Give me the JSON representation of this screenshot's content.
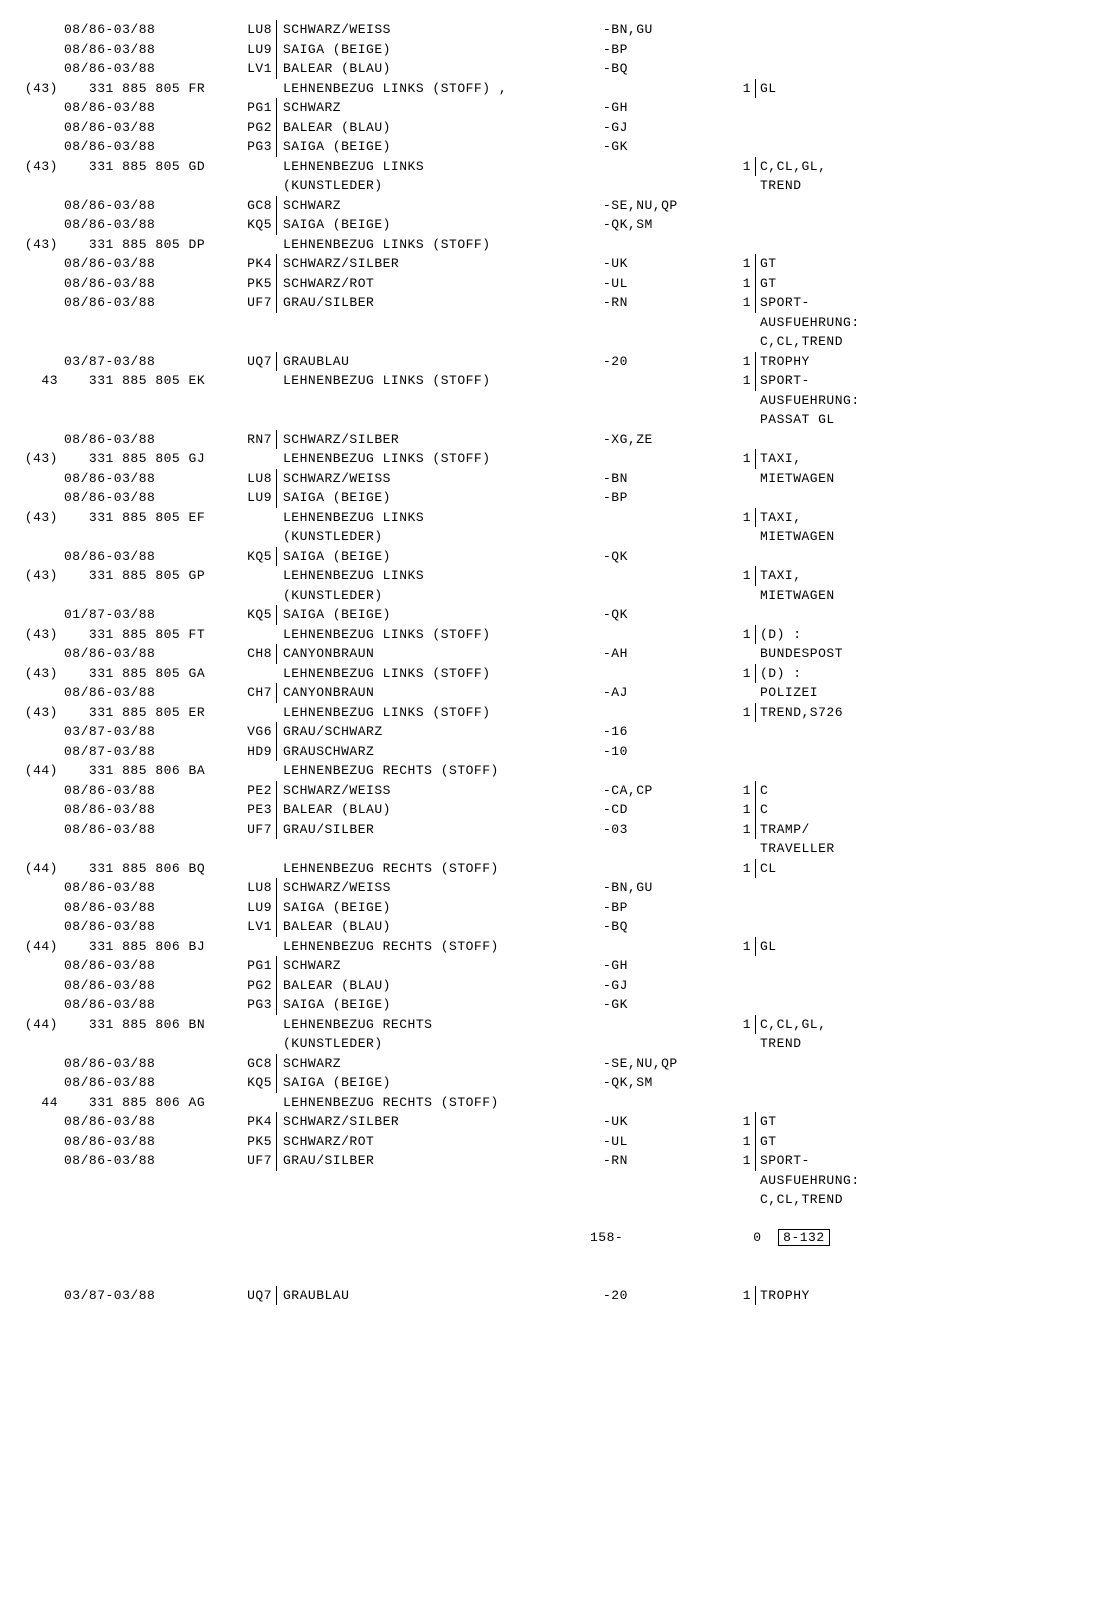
{
  "rows": [
    {
      "idx": "",
      "date": "08/86-03/88",
      "code": "LU8",
      "desc": "SCHWARZ/WEISS",
      "opt": "-BN,GU",
      "qty": "",
      "note": ""
    },
    {
      "idx": "",
      "date": "08/86-03/88",
      "code": "LU9",
      "desc": "SAIGA (BEIGE)",
      "opt": "-BP",
      "qty": "",
      "note": ""
    },
    {
      "idx": "",
      "date": "08/86-03/88",
      "code": "LV1",
      "desc": "BALEAR (BLAU)",
      "opt": "-BQ",
      "qty": "",
      "note": ""
    },
    {
      "idx": "(43)",
      "date": "   331 885 805 FR",
      "code": "",
      "desc": "LEHNENBEZUG LINKS (STOFF) ,",
      "opt": "",
      "qty": "1",
      "note": "GL"
    },
    {
      "idx": "",
      "date": "08/86-03/88",
      "code": "PG1",
      "desc": "SCHWARZ",
      "opt": "-GH",
      "qty": "",
      "note": ""
    },
    {
      "idx": "",
      "date": "08/86-03/88",
      "code": "PG2",
      "desc": "BALEAR (BLAU)",
      "opt": "-GJ",
      "qty": "",
      "note": ""
    },
    {
      "idx": "",
      "date": "08/86-03/88",
      "code": "PG3",
      "desc": "SAIGA (BEIGE)",
      "opt": "-GK",
      "qty": "",
      "note": ""
    },
    {
      "idx": "(43)",
      "date": "   331 885 805 GD",
      "code": "",
      "desc": "LEHNENBEZUG LINKS",
      "opt": "",
      "qty": "1",
      "note": "C,CL,GL,"
    },
    {
      "idx": "",
      "date": "",
      "code": "",
      "desc": "(KUNSTLEDER)",
      "opt": "",
      "qty": "",
      "note": "TREND"
    },
    {
      "idx": "",
      "date": "08/86-03/88",
      "code": "GC8",
      "desc": "SCHWARZ",
      "opt": "-SE,NU,QP",
      "qty": "",
      "note": ""
    },
    {
      "idx": "",
      "date": "08/86-03/88",
      "code": "KQ5",
      "desc": "SAIGA (BEIGE)",
      "opt": "-QK,SM",
      "qty": "",
      "note": ""
    },
    {
      "idx": "(43)",
      "date": "   331 885 805 DP",
      "code": "",
      "desc": "LEHNENBEZUG LINKS (STOFF)",
      "opt": "",
      "qty": "",
      "note": ""
    },
    {
      "idx": "",
      "date": "08/86-03/88",
      "code": "PK4",
      "desc": "SCHWARZ/SILBER",
      "opt": "-UK",
      "qty": "1",
      "note": "GT"
    },
    {
      "idx": "",
      "date": "08/86-03/88",
      "code": "PK5",
      "desc": "SCHWARZ/ROT",
      "opt": "-UL",
      "qty": "1",
      "note": "GT"
    },
    {
      "idx": "",
      "date": "08/86-03/88",
      "code": "UF7",
      "desc": "GRAU/SILBER",
      "opt": "-RN",
      "qty": "1",
      "note": "SPORT-"
    },
    {
      "idx": "",
      "date": "",
      "code": "",
      "desc": "",
      "opt": "",
      "qty": "",
      "note": "AUSFUEHRUNG:"
    },
    {
      "idx": "",
      "date": "",
      "code": "",
      "desc": "",
      "opt": "",
      "qty": "",
      "note": "C,CL,TREND"
    },
    {
      "idx": "",
      "date": "03/87-03/88",
      "code": "UQ7",
      "desc": "GRAUBLAU",
      "opt": "-20",
      "qty": "1",
      "note": "TROPHY"
    },
    {
      "idx": "43",
      "date": "   331 885 805 EK",
      "code": "",
      "desc": "LEHNENBEZUG LINKS (STOFF)",
      "opt": "",
      "qty": "1",
      "note": "SPORT-"
    },
    {
      "idx": "",
      "date": "",
      "code": "",
      "desc": "",
      "opt": "",
      "qty": "",
      "note": "AUSFUEHRUNG:"
    },
    {
      "idx": "",
      "date": "",
      "code": "",
      "desc": "",
      "opt": "",
      "qty": "",
      "note": "PASSAT GL"
    },
    {
      "idx": "",
      "date": "08/86-03/88",
      "code": "RN7",
      "desc": "SCHWARZ/SILBER",
      "opt": "-XG,ZE",
      "qty": "",
      "note": ""
    },
    {
      "idx": "(43)",
      "date": "   331 885 805 GJ",
      "code": "",
      "desc": "LEHNENBEZUG LINKS (STOFF)",
      "opt": "",
      "qty": "1",
      "note": "TAXI,"
    },
    {
      "idx": "",
      "date": "08/86-03/88",
      "code": "LU8",
      "desc": "SCHWARZ/WEISS",
      "opt": "-BN",
      "qty": "",
      "note": "MIETWAGEN"
    },
    {
      "idx": "",
      "date": "08/86-03/88",
      "code": "LU9",
      "desc": "SAIGA (BEIGE)",
      "opt": "-BP",
      "qty": "",
      "note": ""
    },
    {
      "idx": "(43)",
      "date": "   331 885 805 EF",
      "code": "",
      "desc": "LEHNENBEZUG LINKS",
      "opt": "",
      "qty": "1",
      "note": "TAXI,"
    },
    {
      "idx": "",
      "date": "",
      "code": "",
      "desc": "(KUNSTLEDER)",
      "opt": "",
      "qty": "",
      "note": "MIETWAGEN"
    },
    {
      "idx": "",
      "date": "08/86-03/88",
      "code": "KQ5",
      "desc": "SAIGA (BEIGE)",
      "opt": "-QK",
      "qty": "",
      "note": ""
    },
    {
      "idx": "(43)",
      "date": "   331 885 805 GP",
      "code": "",
      "desc": "LEHNENBEZUG LINKS",
      "opt": "",
      "qty": "1",
      "note": "TAXI,"
    },
    {
      "idx": "",
      "date": "",
      "code": "",
      "desc": "(KUNSTLEDER)",
      "opt": "",
      "qty": "",
      "note": "MIETWAGEN"
    },
    {
      "idx": "",
      "date": "01/87-03/88",
      "code": "KQ5",
      "desc": "SAIGA (BEIGE)",
      "opt": "-QK",
      "qty": "",
      "note": ""
    },
    {
      "idx": "(43)",
      "date": "   331 885 805 FT",
      "code": "",
      "desc": "LEHNENBEZUG LINKS (STOFF)",
      "opt": "",
      "qty": "1",
      "note": "(D) :"
    },
    {
      "idx": "",
      "date": "08/86-03/88",
      "code": "CH8",
      "desc": "CANYONBRAUN",
      "opt": "-AH",
      "qty": "",
      "note": "BUNDESPOST"
    },
    {
      "idx": "(43)",
      "date": "   331 885 805 GA",
      "code": "",
      "desc": "LEHNENBEZUG LINKS (STOFF)",
      "opt": "",
      "qty": "1",
      "note": "(D) :"
    },
    {
      "idx": "",
      "date": "08/86-03/88",
      "code": "CH7",
      "desc": "CANYONBRAUN",
      "opt": "-AJ",
      "qty": "",
      "note": "POLIZEI"
    },
    {
      "idx": "(43)",
      "date": "   331 885 805 ER",
      "code": "",
      "desc": "LEHNENBEZUG LINKS (STOFF)",
      "opt": "",
      "qty": "1",
      "note": "TREND,S726"
    },
    {
      "idx": "",
      "date": "03/87-03/88",
      "code": "VG6",
      "desc": "GRAU/SCHWARZ",
      "opt": "-16",
      "qty": "",
      "note": ""
    },
    {
      "idx": "",
      "date": "08/87-03/88",
      "code": "HD9",
      "desc": "GRAUSCHWARZ",
      "opt": "-10",
      "qty": "",
      "note": ""
    },
    {
      "idx": "(44)",
      "date": "   331 885 806 BA",
      "code": "",
      "desc": "LEHNENBEZUG RECHTS (STOFF)",
      "opt": "",
      "qty": "",
      "note": ""
    },
    {
      "idx": "",
      "date": "08/86-03/88",
      "code": "PE2",
      "desc": "SCHWARZ/WEISS",
      "opt": "-CA,CP",
      "qty": "1",
      "note": "C"
    },
    {
      "idx": "",
      "date": "08/86-03/88",
      "code": "PE3",
      "desc": "BALEAR (BLAU)",
      "opt": "-CD",
      "qty": "1",
      "note": "C"
    },
    {
      "idx": "",
      "date": "08/86-03/88",
      "code": "UF7",
      "desc": "GRAU/SILBER",
      "opt": "-03",
      "qty": "1",
      "note": "TRAMP/"
    },
    {
      "idx": "",
      "date": "",
      "code": "",
      "desc": "",
      "opt": "",
      "qty": "",
      "note": "TRAVELLER"
    },
    {
      "idx": "(44)",
      "date": "   331 885 806 BQ",
      "code": "",
      "desc": "LEHNENBEZUG RECHTS (STOFF)",
      "opt": "",
      "qty": "1",
      "note": "CL"
    },
    {
      "idx": "",
      "date": "08/86-03/88",
      "code": "LU8",
      "desc": "SCHWARZ/WEISS",
      "opt": "-BN,GU",
      "qty": "",
      "note": ""
    },
    {
      "idx": "",
      "date": "08/86-03/88",
      "code": "LU9",
      "desc": "SAIGA (BEIGE)",
      "opt": "-BP",
      "qty": "",
      "note": ""
    },
    {
      "idx": "",
      "date": "08/86-03/88",
      "code": "LV1",
      "desc": "BALEAR (BLAU)",
      "opt": "-BQ",
      "qty": "",
      "note": ""
    },
    {
      "idx": "(44)",
      "date": "   331 885 806 BJ",
      "code": "",
      "desc": "LEHNENBEZUG RECHTS (STOFF)",
      "opt": "",
      "qty": "1",
      "note": "GL"
    },
    {
      "idx": "",
      "date": "08/86-03/88",
      "code": "PG1",
      "desc": "SCHWARZ",
      "opt": "-GH",
      "qty": "",
      "note": ""
    },
    {
      "idx": "",
      "date": "08/86-03/88",
      "code": "PG2",
      "desc": "BALEAR (BLAU)",
      "opt": "-GJ",
      "qty": "",
      "note": ""
    },
    {
      "idx": "",
      "date": "08/86-03/88",
      "code": "PG3",
      "desc": "SAIGA (BEIGE)",
      "opt": "-GK",
      "qty": "",
      "note": ""
    },
    {
      "idx": "(44)",
      "date": "   331 885 806 BN",
      "code": "",
      "desc": "LEHNENBEZUG RECHTS",
      "opt": "",
      "qty": "1",
      "note": "C,CL,GL,"
    },
    {
      "idx": "",
      "date": "",
      "code": "",
      "desc": "(KUNSTLEDER)",
      "opt": "",
      "qty": "",
      "note": "TREND"
    },
    {
      "idx": "",
      "date": "08/86-03/88",
      "code": "GC8",
      "desc": "SCHWARZ",
      "opt": "-SE,NU,QP",
      "qty": "",
      "note": ""
    },
    {
      "idx": "",
      "date": "08/86-03/88",
      "code": "KQ5",
      "desc": "SAIGA (BEIGE)",
      "opt": "-QK,SM",
      "qty": "",
      "note": ""
    },
    {
      "idx": "44",
      "date": "   331 885 806 AG",
      "code": "",
      "desc": "LEHNENBEZUG RECHTS (STOFF)",
      "opt": "",
      "qty": "",
      "note": ""
    },
    {
      "idx": "",
      "date": "08/86-03/88",
      "code": "PK4",
      "desc": "SCHWARZ/SILBER",
      "opt": "-UK",
      "qty": "1",
      "note": "GT"
    },
    {
      "idx": "",
      "date": "08/86-03/88",
      "code": "PK5",
      "desc": "SCHWARZ/ROT",
      "opt": "-UL",
      "qty": "1",
      "note": "GT"
    },
    {
      "idx": "",
      "date": "08/86-03/88",
      "code": "UF7",
      "desc": "GRAU/SILBER",
      "opt": "-RN",
      "qty": "1",
      "note": "SPORT-"
    },
    {
      "idx": "",
      "date": "",
      "code": "",
      "desc": "",
      "opt": "",
      "qty": "",
      "note": "AUSFUEHRUNG:"
    },
    {
      "idx": "",
      "date": "",
      "code": "",
      "desc": "",
      "opt": "",
      "qty": "",
      "note": "C,CL,TREND"
    }
  ],
  "footer": {
    "page": "158-",
    "right_a": "0",
    "right_b": "8-132"
  },
  "bottom": {
    "date": "03/87-03/88",
    "code": "UQ7",
    "desc": "GRAUBLAU",
    "opt": "-20",
    "qty": "1",
    "note": "TROPHY"
  }
}
